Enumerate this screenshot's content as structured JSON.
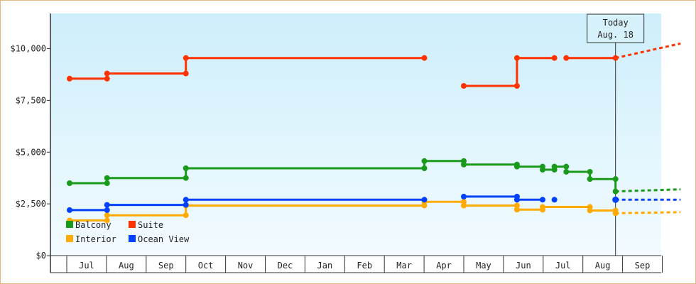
{
  "chart_data": {
    "type": "line",
    "step": true,
    "y_ticks": [
      {
        "value": 0,
        "label": "$0"
      },
      {
        "value": 2500,
        "label": "$2,500"
      },
      {
        "value": 5000,
        "label": "$5,000"
      },
      {
        "value": 7500,
        "label": "$7,500"
      },
      {
        "value": 10000,
        "label": "$10,000"
      }
    ],
    "ylim": [
      0,
      11700
    ],
    "x_ticks": [
      "Jul",
      "Aug",
      "Sep",
      "Oct",
      "Nov",
      "Dec",
      "Jan",
      "Feb",
      "Mar",
      "Apr",
      "May",
      "Jun",
      "Jul",
      "Aug",
      "Sep"
    ],
    "today": {
      "line1": "Today",
      "line2": "Aug. 18"
    },
    "legend_placement": "bottom-left",
    "series": [
      {
        "name": "Balcony",
        "color": "#1a9a1a",
        "points": [
          [
            0,
            3500
          ],
          [
            0.95,
            3500
          ],
          [
            0.95,
            3750
          ],
          [
            2.95,
            3750
          ],
          [
            2.95,
            4220
          ],
          [
            9.0,
            4220
          ],
          [
            9.0,
            4570
          ],
          [
            10.0,
            4570
          ],
          [
            10.0,
            4400
          ],
          [
            11.35,
            4400
          ],
          [
            11.35,
            4300
          ],
          [
            12.0,
            4300
          ],
          [
            12.0,
            4150
          ],
          [
            12.3,
            4150
          ],
          [
            12.3,
            4300
          ],
          [
            12.6,
            4300
          ],
          [
            12.6,
            4050
          ],
          [
            13.2,
            4050
          ],
          [
            13.2,
            3700
          ],
          [
            13.85,
            3700
          ],
          [
            13.85,
            3100
          ]
        ],
        "forecast": [
          [
            13.85,
            3100
          ],
          [
            15.5,
            3200
          ]
        ]
      },
      {
        "name": "Suite",
        "color": "#ff3300",
        "segments": [
          [
            [
              0,
              8550
            ],
            [
              0.95,
              8550
            ],
            [
              0.95,
              8800
            ],
            [
              2.95,
              8800
            ],
            [
              2.95,
              9550
            ],
            [
              9.0,
              9550
            ]
          ],
          [
            [
              10.0,
              8200
            ],
            [
              11.35,
              8200
            ],
            [
              11.35,
              9550
            ],
            [
              12.3,
              9550
            ]
          ],
          [
            [
              12.6,
              9550
            ],
            [
              13.85,
              9550
            ]
          ]
        ],
        "forecast": [
          [
            13.85,
            9550
          ],
          [
            15.5,
            10250
          ]
        ]
      },
      {
        "name": "Interior",
        "color": "#ffaa00",
        "points": [
          [
            0,
            1700
          ],
          [
            0.95,
            1700
          ],
          [
            0.95,
            1950
          ],
          [
            2.95,
            1950
          ],
          [
            2.95,
            2420
          ],
          [
            9.0,
            2420
          ],
          [
            9.0,
            2600
          ],
          [
            10.0,
            2600
          ],
          [
            10.0,
            2420
          ],
          [
            11.35,
            2420
          ],
          [
            11.35,
            2220
          ],
          [
            12.0,
            2220
          ],
          [
            12.0,
            2350
          ],
          [
            13.2,
            2350
          ],
          [
            13.2,
            2180
          ],
          [
            13.85,
            2180
          ],
          [
            13.85,
            2050
          ]
        ],
        "forecast": [
          [
            13.85,
            2050
          ],
          [
            15.5,
            2100
          ]
        ]
      },
      {
        "name": "Ocean View",
        "color": "#0040ff",
        "points": [
          [
            0,
            2200
          ],
          [
            0.95,
            2200
          ],
          [
            0.95,
            2450
          ],
          [
            2.95,
            2450
          ],
          [
            2.95,
            2700
          ],
          [
            9.0,
            2700
          ]
        ],
        "segments2": [
          [
            [
              10.0,
              2850
            ],
            [
              11.35,
              2850
            ],
            [
              11.35,
              2700
            ],
            [
              12.0,
              2700
            ]
          ],
          [
            [
              12.3,
              2700
            ]
          ]
        ],
        "end": [
          [
            13.85,
            2700
          ]
        ],
        "forecast": [
          [
            13.85,
            2700
          ],
          [
            15.5,
            2700
          ]
        ]
      }
    ]
  }
}
